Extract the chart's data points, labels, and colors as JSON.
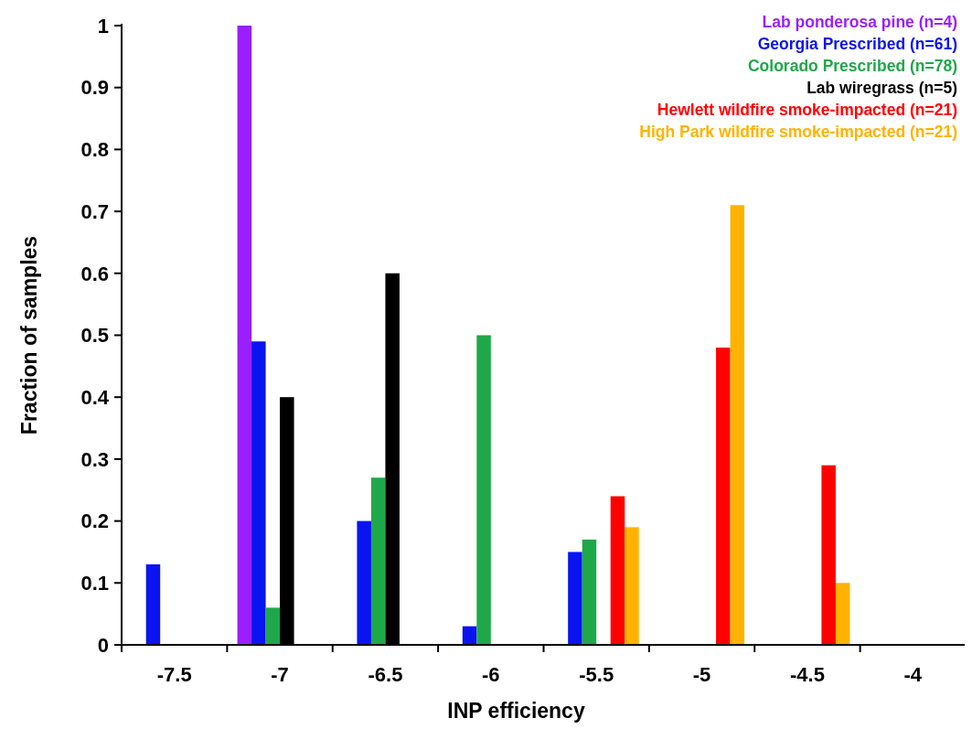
{
  "chart_data": {
    "type": "bar",
    "xlabel": "INP efficiency",
    "ylabel": "Fraction of samples",
    "categories": [
      "-7.5",
      "-7",
      "-6.5",
      "-6",
      "-5.5",
      "-5",
      "-4.5",
      "-4"
    ],
    "series": [
      {
        "name": "Lab ponderosa pine (n=4)",
        "color": "#9a1fff",
        "values": [
          0,
          1,
          0,
          0,
          0,
          0,
          0,
          0
        ]
      },
      {
        "name": "Georgia Prescribed (n=61)",
        "color": "#0a14f0",
        "values": [
          0.13,
          0.49,
          0.2,
          0.03,
          0.15,
          0,
          0,
          0
        ]
      },
      {
        "name": "Colorado Prescribed (n=78)",
        "color": "#1fa84a",
        "values": [
          0,
          0.06,
          0.27,
          0.5,
          0.17,
          0,
          0,
          0
        ]
      },
      {
        "name": "Lab wiregrass (n=5)",
        "color": "#000000",
        "values": [
          0,
          0.4,
          0.6,
          0,
          0,
          0,
          0,
          0
        ]
      },
      {
        "name": "Hewlett wildfire smoke-impacted (n=21)",
        "color": "#ff0000",
        "values": [
          0,
          0,
          0,
          0,
          0.24,
          0.48,
          0.29,
          0
        ]
      },
      {
        "name": "High Park wildfire smoke-impacted (n=21)",
        "color": "#ffb300",
        "values": [
          0,
          0,
          0,
          0,
          0.19,
          0.71,
          0.1,
          0
        ]
      }
    ],
    "ylim": [
      0,
      1
    ],
    "yticks": [
      0,
      0.1,
      0.2,
      0.3,
      0.4,
      0.5,
      0.6,
      0.7,
      0.8,
      0.9,
      1
    ],
    "legend": "top right",
    "grid": false
  }
}
